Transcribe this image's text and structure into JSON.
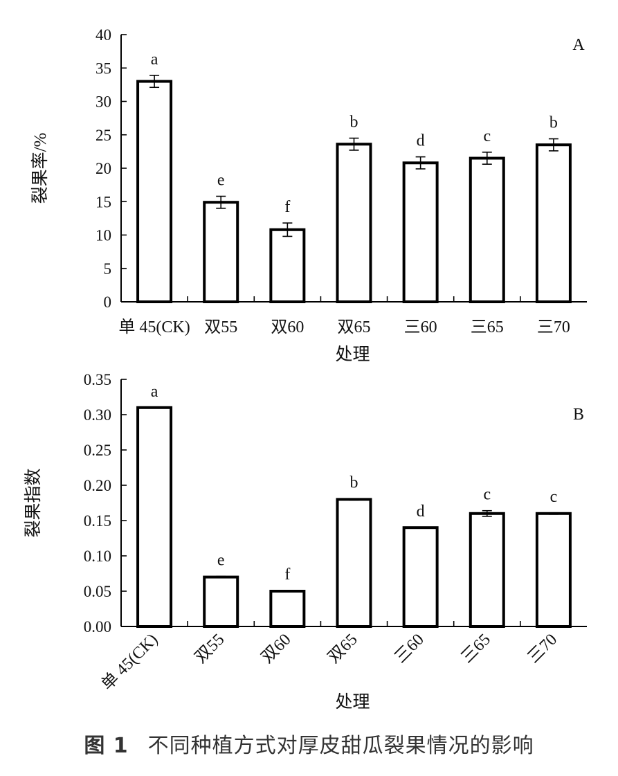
{
  "chart_data": [
    {
      "type": "bar",
      "panel_label": "A",
      "categories": [
        "单 45(CK)",
        "双55",
        "双60",
        "双65",
        "三60",
        "三65",
        "三70"
      ],
      "values": [
        33.0,
        14.9,
        10.8,
        23.6,
        20.8,
        21.5,
        23.5
      ],
      "errors": [
        0.9,
        0.9,
        1.0,
        0.9,
        0.9,
        0.9,
        0.9
      ],
      "letters": [
        "a",
        "e",
        "f",
        "b",
        "d",
        "c",
        "b"
      ],
      "xlabel": "处理",
      "ylabel": "裂果率/%",
      "ylim": [
        0,
        40
      ],
      "yticks": [
        "0",
        "5",
        "10",
        "15",
        "20",
        "25",
        "30",
        "35",
        "40"
      ],
      "grid": false
    },
    {
      "type": "bar",
      "panel_label": "B",
      "categories": [
        "单 45(CK)",
        "双55",
        "双60",
        "双65",
        "三60",
        "三65",
        "三70"
      ],
      "values": [
        0.31,
        0.07,
        0.05,
        0.18,
        0.14,
        0.16,
        0.16
      ],
      "errors": [
        0.0,
        0.001,
        0.001,
        0.001,
        0.0,
        0.004,
        0.001
      ],
      "letters": [
        "a",
        "e",
        "f",
        "b",
        "d",
        "c",
        "c"
      ],
      "xlabel": "处理",
      "ylabel": "裂果指数",
      "ylim": [
        0,
        0.35
      ],
      "yticks": [
        "0.00",
        "0.05",
        "0.10",
        "0.15",
        "0.20",
        "0.25",
        "0.30",
        "0.35"
      ],
      "grid": false
    }
  ],
  "caption": {
    "number": "图 1",
    "text": "不同种植方式对厚皮甜瓜裂果情况的影响"
  }
}
